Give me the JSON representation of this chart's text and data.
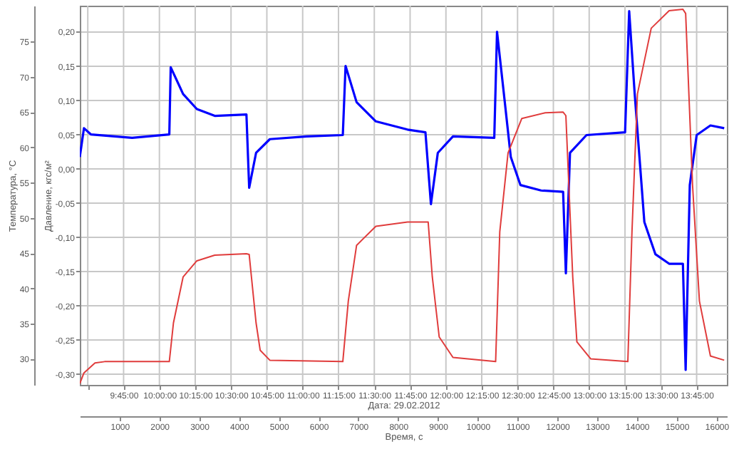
{
  "chart_data": {
    "type": "line",
    "xlabel": "Время, с",
    "ylabel": "Давление, кгс/м²",
    "y2label": "Температура, °C",
    "x2label": "Дата: 29.02.2012",
    "xlim": [
      0,
      16260
    ],
    "xticks": [
      1000,
      2000,
      3000,
      4000,
      5000,
      6000,
      7000,
      8000,
      9000,
      10000,
      11000,
      12000,
      13000,
      14000,
      15000,
      16000
    ],
    "x2lim": [
      9.4444,
      13.9611
    ],
    "x2ticks": [
      {
        "value": 9.5,
        "label": null
      },
      {
        "value": 9.75,
        "label": "9:45:00"
      },
      {
        "value": 10.0,
        "label": "10:00:00"
      },
      {
        "value": 10.25,
        "label": "10:15:00"
      },
      {
        "value": 10.5,
        "label": "10:30:00"
      },
      {
        "value": 10.75,
        "label": "10:45:00"
      },
      {
        "value": 11.0,
        "label": "11:00:00"
      },
      {
        "value": 11.25,
        "label": "11:15:00"
      },
      {
        "value": 11.5,
        "label": "11:30:00"
      },
      {
        "value": 11.75,
        "label": "11:45:00"
      },
      {
        "value": 12.0,
        "label": "12:00:00"
      },
      {
        "value": 12.25,
        "label": "12:15:00"
      },
      {
        "value": 12.5,
        "label": "12:30:00"
      },
      {
        "value": 12.75,
        "label": "12:45:00"
      },
      {
        "value": 13.0,
        "label": "13:00:00"
      },
      {
        "value": 13.25,
        "label": "13:15:00"
      },
      {
        "value": 13.5,
        "label": "13:30:00"
      },
      {
        "value": 13.75,
        "label": "13:45:00"
      }
    ],
    "ylim": [
      -0.316,
      0.238
    ],
    "yticks": [
      {
        "value": -0.3,
        "label": "-0,30"
      },
      {
        "value": -0.25,
        "label": "-0,25"
      },
      {
        "value": -0.2,
        "label": "-0,20"
      },
      {
        "value": -0.15,
        "label": "-0,15"
      },
      {
        "value": -0.1,
        "label": "-0,10"
      },
      {
        "value": -0.05,
        "label": "-0,05"
      },
      {
        "value": 0,
        "label": "0,00"
      },
      {
        "value": 0.05,
        "label": "0,05"
      },
      {
        "value": 0.1,
        "label": "0,10"
      },
      {
        "value": 0.15,
        "label": "0,15"
      },
      {
        "value": 0.2,
        "label": "0,20"
      }
    ],
    "y2lim": [
      26.3,
      80.1
    ],
    "y2ticks": [
      30,
      35,
      40,
      45,
      50,
      55,
      60,
      65,
      70,
      75
    ],
    "grid": true,
    "series": [
      {
        "color": "#0000ff",
        "x": [
          0,
          104,
          277,
          1315,
          2249,
          2284,
          2595,
          2941,
          3391,
          4187,
          4256,
          4429,
          4775,
          5709,
          6609,
          6678,
          6955,
          7439,
          8235,
          8685,
          8823,
          8996,
          9377,
          10415,
          10484,
          10657,
          10830,
          11072,
          11591,
          12145,
          12214,
          12318,
          12733,
          13702,
          13805,
          13944,
          14186,
          14463,
          14809,
          15155,
          15224,
          15328,
          15501,
          15847,
          16193
        ],
        "values": [
          0.017,
          0.059,
          0.05,
          0.045,
          0.05,
          0.148,
          0.109,
          0.087,
          0.077,
          0.079,
          -0.028,
          0.023,
          0.043,
          0.047,
          0.049,
          0.15,
          0.097,
          0.069,
          0.057,
          0.053,
          -0.052,
          0.023,
          0.047,
          0.045,
          0.2,
          0.109,
          0.017,
          -0.024,
          -0.032,
          -0.034,
          -0.153,
          0.023,
          0.049,
          0.053,
          0.23,
          0.109,
          -0.078,
          -0.125,
          -0.139,
          -0.139,
          -0.294,
          -0.024,
          0.049,
          0.063,
          0.059
        ]
      },
      {
        "color": "#e03c3c",
        "axis": "y2",
        "x": [
          0,
          104,
          381,
          623,
          2249,
          2353,
          2595,
          2941,
          3391,
          4187,
          4256,
          4429,
          4533,
          4775,
          6609,
          6747,
          6955,
          7439,
          8235,
          8754,
          8858,
          9031,
          9377,
          10449,
          10553,
          10761,
          11107,
          11695,
          12145,
          12214,
          12387,
          12491,
          12837,
          13771,
          13875,
          14013,
          14359,
          14809,
          15155,
          15224,
          15397,
          15570,
          15847,
          16193
        ],
        "values": [
          26.5,
          28.0,
          29.4,
          29.6,
          29.6,
          35.1,
          41.6,
          43.9,
          44.7,
          44.9,
          44.8,
          35.1,
          31.2,
          29.8,
          29.6,
          38.2,
          46.1,
          48.8,
          49.4,
          49.4,
          41.6,
          33.1,
          30.2,
          29.6,
          48.0,
          59.2,
          64.1,
          64.9,
          65.0,
          64.5,
          41.6,
          32.4,
          30.0,
          29.6,
          48.0,
          67.6,
          76.9,
          79.4,
          79.6,
          79.0,
          54.7,
          38.2,
          30.4,
          29.8
        ]
      }
    ]
  }
}
